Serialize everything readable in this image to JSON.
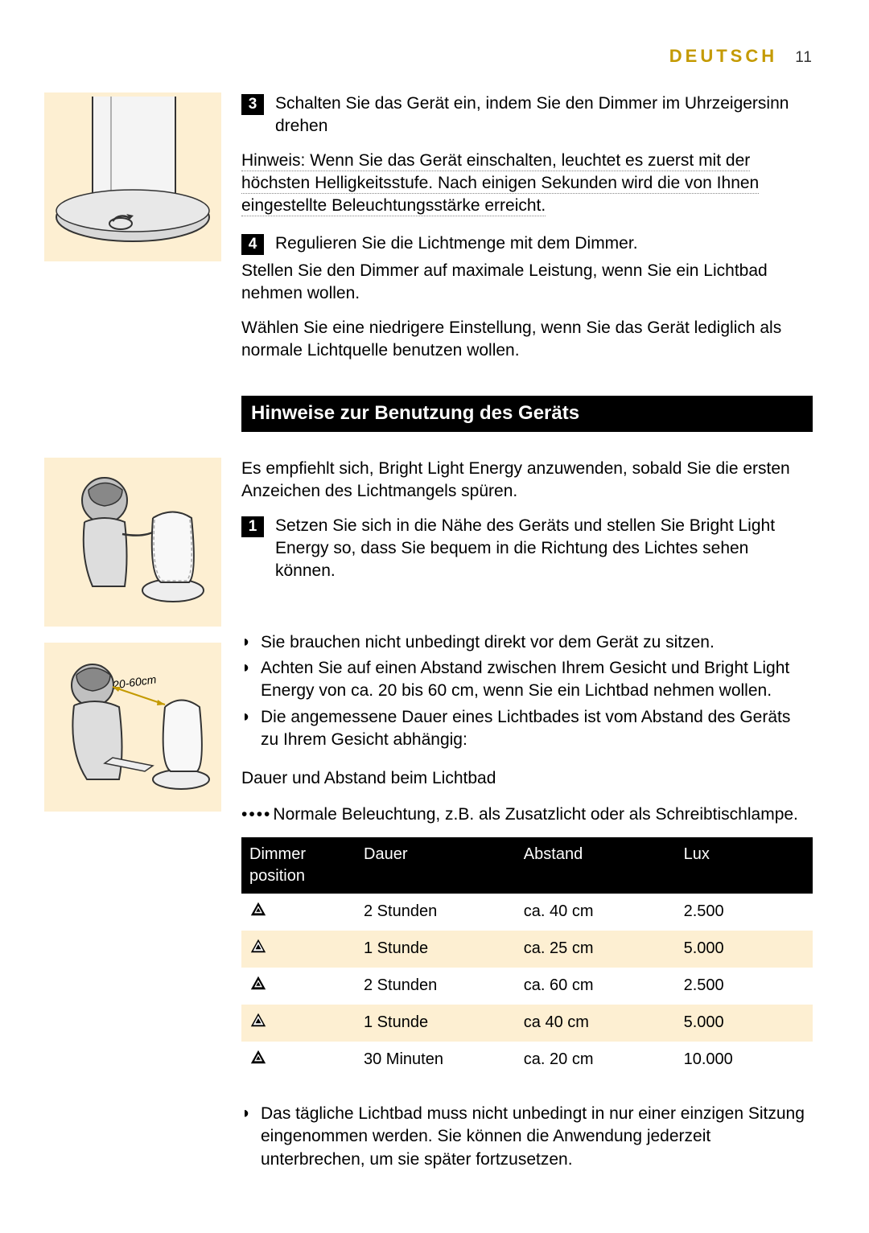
{
  "header": {
    "language": "DEUTSCH",
    "page_number": "11"
  },
  "colors": {
    "accent": "#c49a00",
    "cream": "#fdefd2",
    "black": "#000000",
    "white": "#ffffff",
    "dotted_underline": "#888888"
  },
  "steps_a": [
    {
      "num": "3",
      "text": "Schalten Sie das Gerät ein, indem Sie den Dimmer im Uhrzeigersinn drehen"
    }
  ],
  "note_lines": [
    "Hinweis: Wenn Sie das Gerät einschalten, leuchtet es zuerst mit der",
    "höchsten Helligkeitsstufe. Nach einigen Sekunden wird die von Ihnen",
    "eingestellte Beleuchtungsstärke erreicht."
  ],
  "step4": {
    "num": "4",
    "text": "Regulieren Sie die Lichtmenge mit dem Dimmer."
  },
  "para_after4": [
    "Stellen Sie den Dimmer auf maximale Leistung, wenn Sie ein Lichtbad nehmen wollen.",
    "Wählen Sie eine niedrigere Einstellung, wenn Sie das Gerät lediglich als normale Lichtquelle benutzen wollen."
  ],
  "section_title": "Hinweise zur Benutzung des Geräts",
  "intro_para": "Es empfiehlt sich, Bright Light Energy anzuwenden, sobald Sie die ersten Anzeichen des Lichtmangels spüren.",
  "step_b1": {
    "num": "1",
    "text": "Setzen Sie sich in die Nähe des Geräts und stellen Sie Bright Light Energy so, dass Sie bequem in die Richtung des Lichtes sehen können."
  },
  "bullets": [
    "Sie brauchen nicht unbedingt direkt vor dem Gerät zu sitzen.",
    "Achten Sie auf einen Abstand zwischen Ihrem Gesicht und Bright Light Energy von ca. 20 bis 60 cm, wenn Sie ein Lichtbad nehmen wollen.",
    "Die angemessene Dauer eines Lichtbades ist vom Abstand des Geräts zu Ihrem Gesicht abhängig:"
  ],
  "subhead_text": "Dauer und Abstand beim Lichtbad",
  "normal_light_text": "Normale Beleuchtung, z.B. als Zusatzlicht oder als Schreibtischlampe.",
  "figure2_label": "20-60cm",
  "table": {
    "columns": [
      "Dimmer position",
      "Dauer",
      "Abstand",
      "Lux"
    ],
    "col_widths": [
      "20%",
      "28%",
      "28%",
      "24%"
    ],
    "rows": [
      {
        "icon_scale": 0.55,
        "dauer": "2 Stunden",
        "abstand": "ca. 40 cm",
        "lux": "2.500",
        "alt": false
      },
      {
        "icon_scale": 0.7,
        "dauer": "1 Stunde",
        "abstand": "ca. 25 cm",
        "lux": "5.000",
        "alt": true
      },
      {
        "icon_scale": 0.55,
        "dauer": "2 Stunden",
        "abstand": "ca. 60 cm",
        "lux": "2.500",
        "alt": false
      },
      {
        "icon_scale": 0.7,
        "dauer": "1 Stunde",
        "abstand": "ca 40 cm",
        "lux": "5.000",
        "alt": true
      },
      {
        "icon_scale": 0.55,
        "dauer": "30 Minuten",
        "abstand": "ca. 20 cm",
        "lux": "10.000",
        "alt": false
      }
    ]
  },
  "final_bullet": "Das tägliche Lichtbad muss nicht unbedingt in nur einer einzigen Sitzung eingenommen werden. Sie können die Anwendung jederzeit unterbrechen, um sie später fortzusetzen."
}
